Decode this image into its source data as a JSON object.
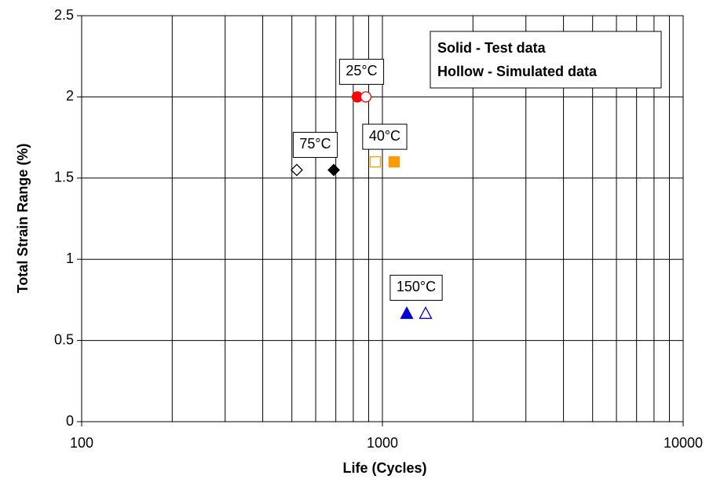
{
  "chart_data": {
    "type": "scatter",
    "xlabel": "Life (Cycles)",
    "ylabel": "Total Strain Range (%)",
    "xscale": "log",
    "xlim": [
      100,
      10000
    ],
    "xticks": [
      100,
      1000,
      10000
    ],
    "x_minor_ticks": [
      200,
      300,
      400,
      500,
      600,
      700,
      800,
      900,
      2000,
      3000,
      4000,
      5000,
      6000,
      7000,
      8000,
      9000
    ],
    "ylim": [
      0,
      2.5
    ],
    "yticks": [
      0,
      0.5,
      1,
      1.5,
      2,
      2.5
    ],
    "grid": true,
    "legend_position": "upper right",
    "point_labels": [
      "25°C",
      "75°C",
      "40°C",
      "150°C"
    ],
    "series": [
      {
        "name": "Solid - Test data",
        "filled": true,
        "x": [
          825,
          689,
          1094,
          1205
        ],
        "values": [
          2.0,
          1.55,
          1.6,
          0.67
        ],
        "colors": [
          "#ff0000",
          "#000000",
          "#ff9900",
          "#0000cc"
        ],
        "markers": [
          "circle",
          "diamond",
          "square",
          "triangle"
        ]
      },
      {
        "name": "Hollow - Simulated data",
        "filled": false,
        "x": [
          881,
          519,
          947,
          1392
        ],
        "values": [
          2.0,
          1.55,
          1.6,
          0.67
        ],
        "colors": [
          "#ff0000",
          "#000000",
          "#ff9900",
          "#0000cc"
        ],
        "markers": [
          "circle",
          "diamond",
          "square",
          "triangle"
        ]
      }
    ]
  }
}
